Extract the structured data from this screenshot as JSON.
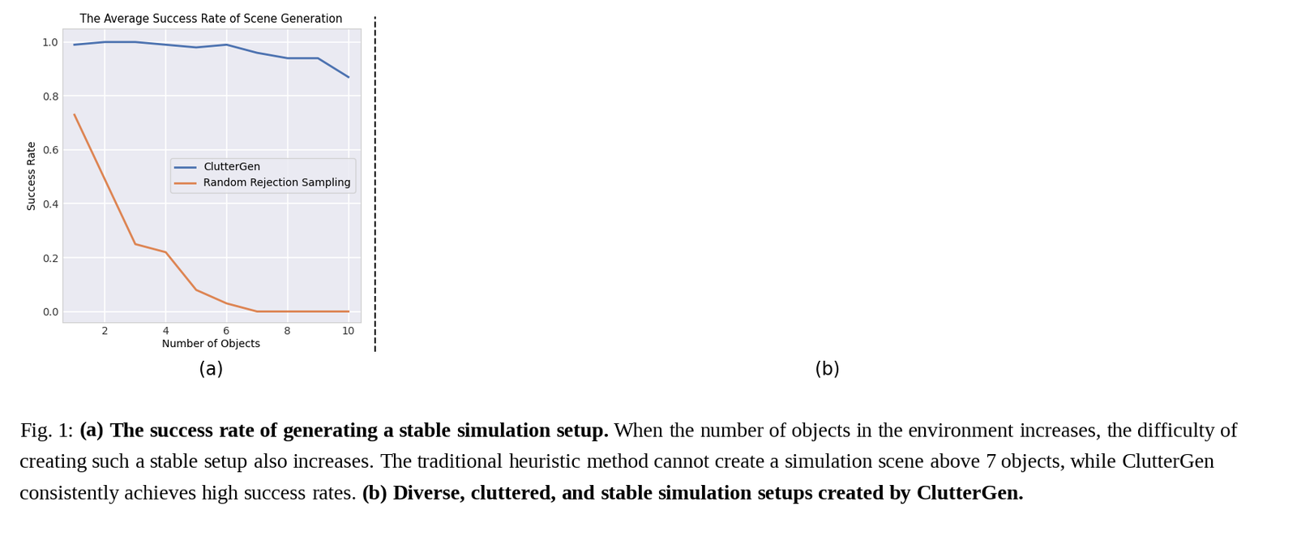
{
  "chart_data": {
    "type": "line",
    "title": "The Average Success Rate of Scene Generation",
    "x_label": "Number of Objects",
    "y_label": "Success Rate",
    "x": [
      1,
      2,
      3,
      4,
      5,
      6,
      7,
      8,
      9,
      10
    ],
    "series": [
      {
        "name": "ClutterGen",
        "color": "#4c72b0",
        "values": [
          0.99,
          1.0,
          1.0,
          0.99,
          0.98,
          0.99,
          0.96,
          0.94,
          0.94,
          0.87
        ]
      },
      {
        "name": "Random Rejection Sampling",
        "color": "#dd8452",
        "values": [
          0.73,
          0.49,
          0.25,
          0.22,
          0.08,
          0.03,
          0.0,
          0.0,
          0.0,
          0.0
        ]
      }
    ],
    "xlim": [
      0.6,
      10.4
    ],
    "xticks": [
      2,
      4,
      6,
      8,
      10
    ],
    "ylim": [
      -0.04,
      1.05
    ],
    "yticks": [
      {
        "value": 0.0,
        "label": "0.0"
      },
      0.2,
      0.4,
      0.6,
      0.8,
      {
        "value": 1.0,
        "label": "1.0"
      }
    ],
    "grid": true,
    "legend": "center right"
  },
  "panels": {
    "a": "(a)",
    "b": "(b)"
  },
  "caption": {
    "label": "Fig. 1:",
    "parts": [
      {
        "heading": "(a) The success rate of generating a stable simulation setup.",
        "text": "When the number of objects in the environment increases, the difficulty of creating such a stable setup also increases. The traditional heuristic method cannot create a simulation scene above 7 objects, while ClutterGen consistently achieves high success rates."
      },
      {
        "heading": "(b) Diverse, cluttered, and stable simulation setups created by ClutterGen.",
        "text": ""
      }
    ]
  }
}
